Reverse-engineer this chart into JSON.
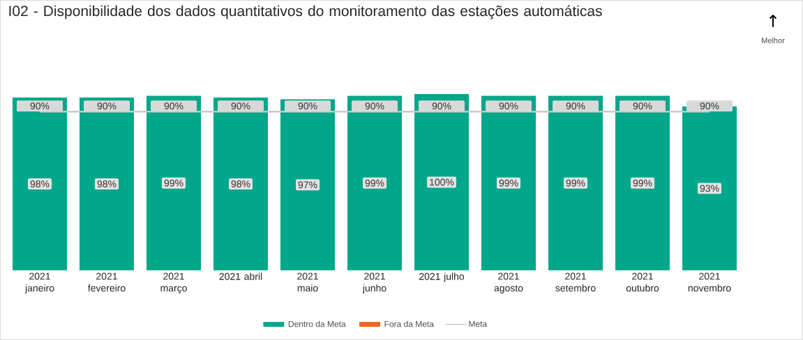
{
  "chart_data": {
    "type": "bar",
    "title": "I02 - Disponibilidade dos dados quantitativos do monitoramento das estações automáticas",
    "annotations": [
      "↑",
      "Melhor"
    ],
    "categories": [
      "2021 janeiro",
      "2021 fevereiro",
      "2021 março",
      "2021 abril",
      "2021 maio",
      "2021 junho",
      "2021 julho",
      "2021 agosto",
      "2021 setembro",
      "2021 outubro",
      "2021 novembro"
    ],
    "series": [
      {
        "name": "Dentro da Meta",
        "color": "#01a78a",
        "values": [
          98,
          98,
          99,
          98,
          97,
          99,
          100,
          99,
          99,
          99,
          93
        ],
        "value_labels": [
          "98%",
          "98%",
          "99%",
          "98%",
          "97%",
          "99%",
          "100%",
          "99%",
          "99%",
          "99%",
          "93%"
        ]
      },
      {
        "name": "Fora da Meta",
        "color": "#f26522",
        "values": [
          null,
          null,
          null,
          null,
          null,
          null,
          null,
          null,
          null,
          null,
          null
        ]
      },
      {
        "name": "Meta",
        "type": "line",
        "color": "#c8c8c8",
        "values": [
          90,
          90,
          90,
          90,
          90,
          90,
          90,
          90,
          90,
          90,
          90
        ],
        "value_labels": [
          "90%",
          "90%",
          "90%",
          "90%",
          "90%",
          "90%",
          "90%",
          "90%",
          "90%",
          "90%",
          "90%"
        ]
      }
    ],
    "legend": "bottom"
  }
}
